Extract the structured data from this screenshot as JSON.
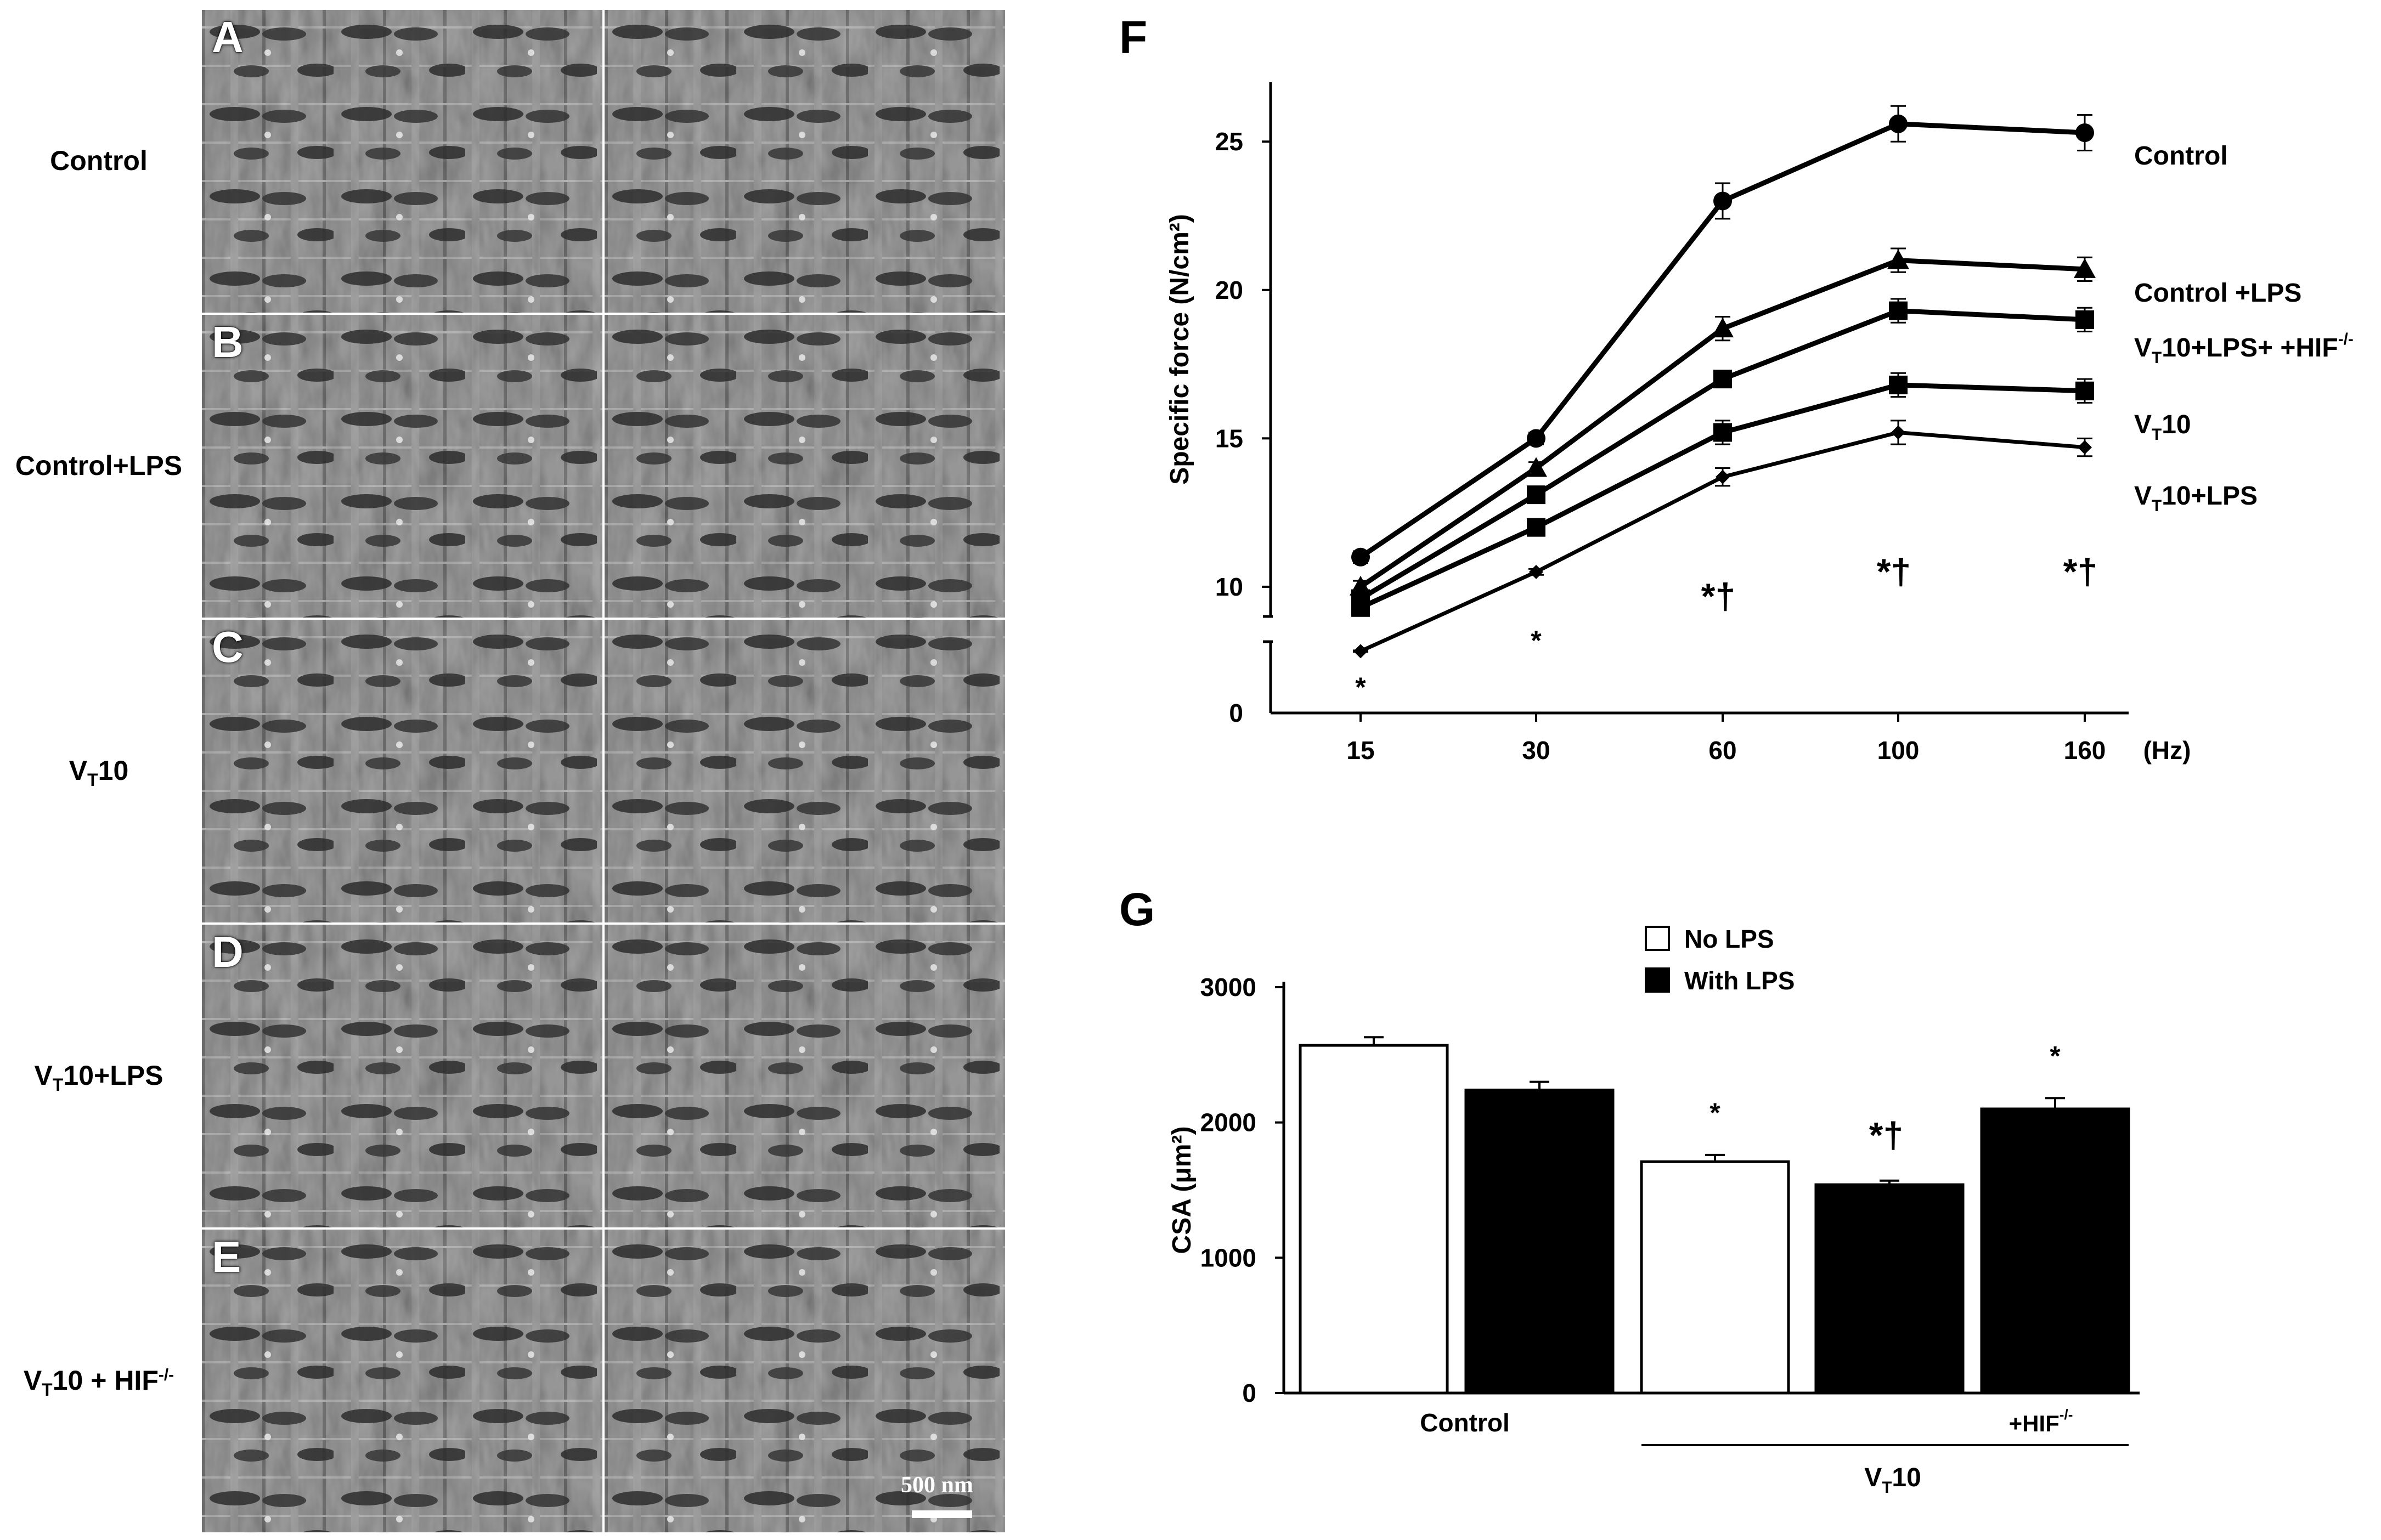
{
  "em_panels": {
    "rows": [
      {
        "letter": "A",
        "label": "Control",
        "label_sub": "",
        "label_rest": "",
        "label_sup": ""
      },
      {
        "letter": "B",
        "label": "Control+LPS",
        "label_sub": "",
        "label_rest": "",
        "label_sup": ""
      },
      {
        "letter": "C",
        "label": "V",
        "label_sub": "T",
        "label_rest": "10",
        "label_sup": ""
      },
      {
        "letter": "D",
        "label": "V",
        "label_sub": "T",
        "label_rest": "10+LPS",
        "label_sup": ""
      },
      {
        "letter": "E",
        "label": "V",
        "label_sub": "T",
        "label_rest": "10 + HIF",
        "label_sup": "-/-"
      }
    ],
    "scale_bar_label": "500 nm"
  },
  "panel_f": {
    "letter": "F",
    "ylabel": "Specific force (N/cm²)",
    "x_unit": "(Hz)",
    "yticks_upper": [
      "10",
      "15",
      "20",
      "25"
    ],
    "ytick_lower": "0",
    "series_labels": [
      {
        "main": "Control",
        "sub": "",
        "rest": "",
        "sup": ""
      },
      {
        "main": "Control +LPS",
        "sub": "",
        "rest": "",
        "sup": ""
      },
      {
        "main": "V",
        "sub": "T",
        "rest": "10+LPS+ +HIF",
        "sup": "-/-"
      },
      {
        "main": "V",
        "sub": "T",
        "rest": "10",
        "sup": ""
      },
      {
        "main": "V",
        "sub": "T",
        "rest": "10+LPS",
        "sup": ""
      }
    ],
    "significance": [
      "*",
      "*",
      "*†",
      "*†",
      "*†"
    ]
  },
  "panel_g": {
    "letter": "G",
    "ylabel": "CSA (μm²)",
    "legend": [
      "No LPS",
      "With LPS"
    ],
    "group_labels": {
      "control": "Control",
      "vt_main": "V",
      "vt_sub": "T",
      "vt_rest": "10",
      "hif": "+HIF",
      "hif_sup": "-/-"
    },
    "significance": [
      "",
      "",
      "*",
      "*†",
      "*"
    ]
  },
  "chart_data": [
    {
      "type": "line",
      "title": "",
      "xlabel": "(Hz)",
      "ylabel": "Specific force (N/cm²)",
      "x": [
        "15",
        "30",
        "60",
        "100",
        "160"
      ],
      "ylim": [
        0,
        27
      ],
      "axis_break": [
        6,
        9
      ],
      "series": [
        {
          "name": "Control",
          "marker": "circle",
          "values": [
            11.0,
            15.0,
            23.0,
            25.6,
            25.3
          ],
          "errors": [
            0.2,
            0.2,
            0.6,
            0.6,
            0.6
          ]
        },
        {
          "name": "Control +LPS",
          "marker": "triangle",
          "values": [
            10.0,
            14.0,
            18.7,
            21.0,
            20.7
          ],
          "errors": [
            0.2,
            0.2,
            0.4,
            0.4,
            0.4
          ]
        },
        {
          "name": "VT10+LPS+ +HIF-/-",
          "marker": "square",
          "values": [
            9.6,
            13.1,
            17.0,
            19.3,
            19.0
          ],
          "errors": [
            0.2,
            0.2,
            0.2,
            0.4,
            0.4
          ]
        },
        {
          "name": "VT10",
          "marker": "square",
          "values": [
            9.3,
            12.0,
            15.2,
            16.8,
            16.6
          ],
          "errors": [
            0.2,
            0.2,
            0.4,
            0.4,
            0.4
          ]
        },
        {
          "name": "VT10+LPS",
          "marker": "diamond",
          "values": [
            7.8,
            10.5,
            13.7,
            15.2,
            14.7
          ],
          "errors": [
            0.1,
            0.1,
            0.3,
            0.4,
            0.3
          ]
        }
      ]
    },
    {
      "type": "bar",
      "title": "",
      "xlabel": "",
      "ylabel": "CSA (μm²)",
      "ylim": [
        0,
        3000
      ],
      "yticks": [
        0,
        1000,
        2000,
        3000
      ],
      "bars": [
        {
          "group": "Control",
          "lps": "No LPS",
          "value": 2570,
          "error": 60
        },
        {
          "group": "Control",
          "lps": "With LPS",
          "value": 2240,
          "error": 60
        },
        {
          "group": "VT10",
          "lps": "No LPS",
          "value": 1710,
          "error": 50
        },
        {
          "group": "VT10",
          "lps": "With LPS",
          "value": 1540,
          "error": 30
        },
        {
          "group": "VT10 +HIF-/-",
          "lps": "With LPS",
          "value": 2100,
          "error": 80
        }
      ]
    }
  ]
}
